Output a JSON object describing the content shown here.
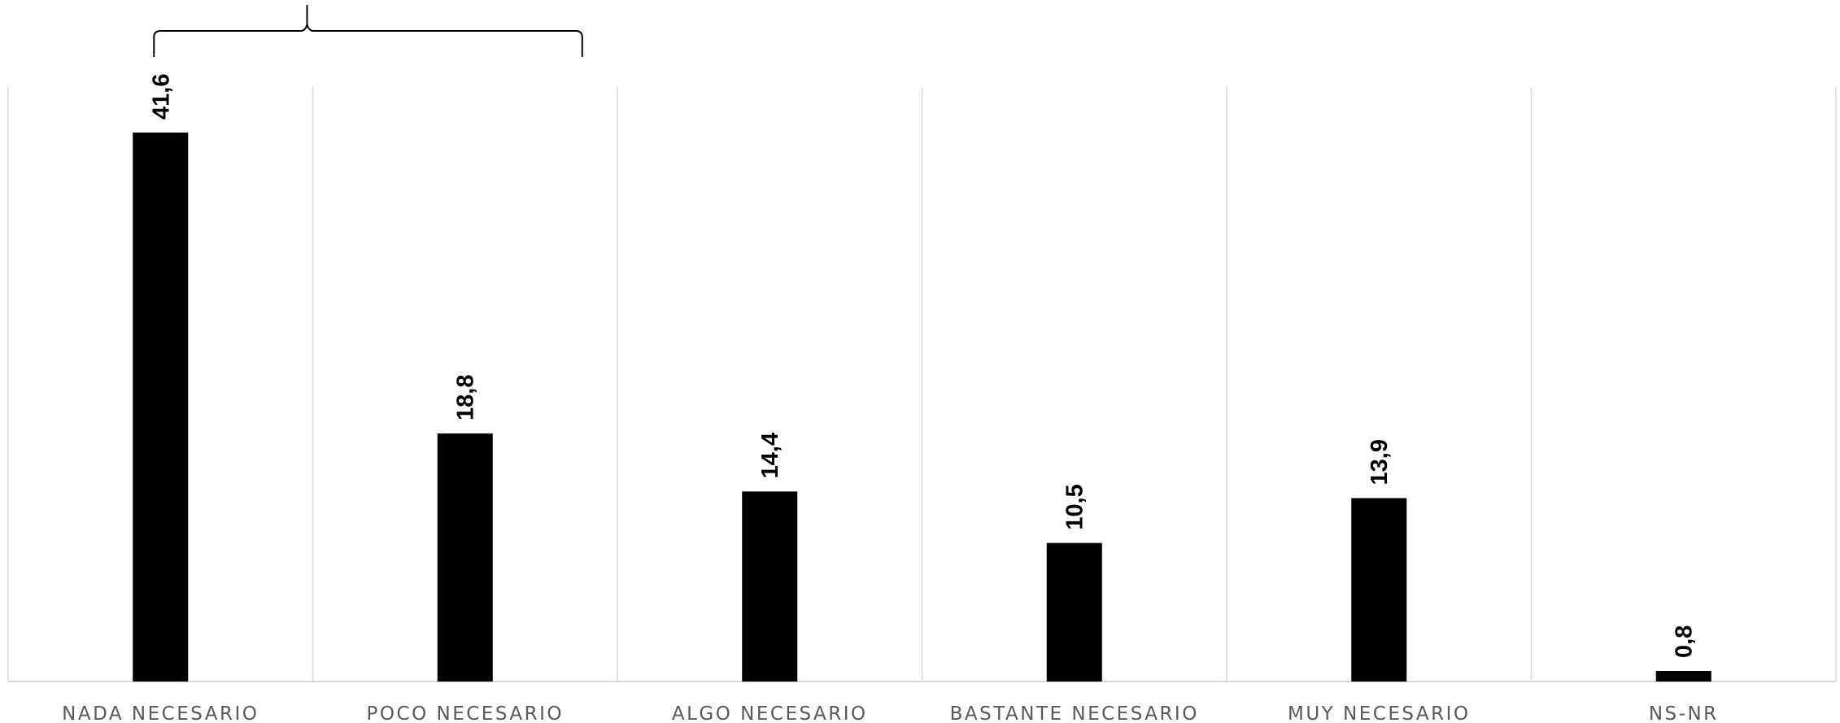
{
  "chart_data": {
    "type": "bar",
    "categories": [
      "NADA NECESARIO",
      "POCO NECESARIO",
      "ALGO NECESARIO",
      "BASTANTE NECESARIO",
      "MUY NECESARIO",
      "NS-NR"
    ],
    "values": [
      41.6,
      18.8,
      14.4,
      10.5,
      13.9,
      0.8
    ],
    "value_labels": [
      "41,6",
      "18,8",
      "14,4",
      "10,5",
      "13,9",
      "0,8"
    ],
    "title": "",
    "xlabel": "",
    "ylabel": "",
    "ylim": [
      0,
      45
    ],
    "grid": "vertical separators",
    "legend": "none",
    "bar_color": "#000000",
    "gridline_color": "#d9d9d9",
    "label_color": "#595959",
    "annotations": [
      {
        "type": "brace",
        "spans_categories": [
          "NADA NECESARIO",
          "POCO NECESARIO"
        ],
        "text": ""
      }
    ]
  }
}
